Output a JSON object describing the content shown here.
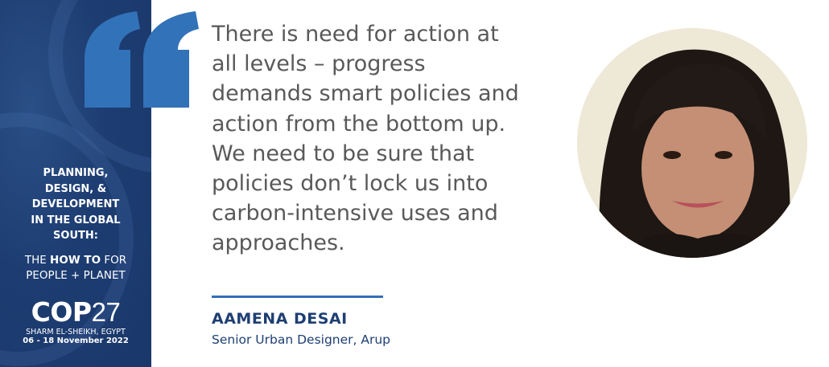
{
  "sidebar": {
    "title_lines": [
      "PLANNING,",
      "DESIGN, &",
      "DEVELOPMENT",
      "IN THE GLOBAL",
      "SOUTH:"
    ],
    "subtitle": {
      "pre": "THE ",
      "bold": "HOW TO",
      "post": " FOR",
      "line2": "PEOPLE + PLANET"
    },
    "cop_bold": "COP",
    "cop_num": "27",
    "location": "SHARM EL-SHEIKH, EGYPT",
    "dates": "06 - 18 November 2022"
  },
  "quote": {
    "lines": [
      "There is need for action at",
      "all levels – progress",
      "demands smart policies and",
      "action from the bottom up.",
      "We need to be sure that",
      "policies don’t lock us into",
      "carbon-intensive uses and",
      "approaches."
    ]
  },
  "speaker": {
    "name": "AAMENA DESAI",
    "role": "Senior Urban Designer, Arup"
  },
  "colors": {
    "sidebar": "#1d3d72",
    "accent": "#3272b8",
    "name": "#1f3f73",
    "quote_text": "#595959"
  },
  "icons": {
    "quote": "open-quote-icon"
  }
}
